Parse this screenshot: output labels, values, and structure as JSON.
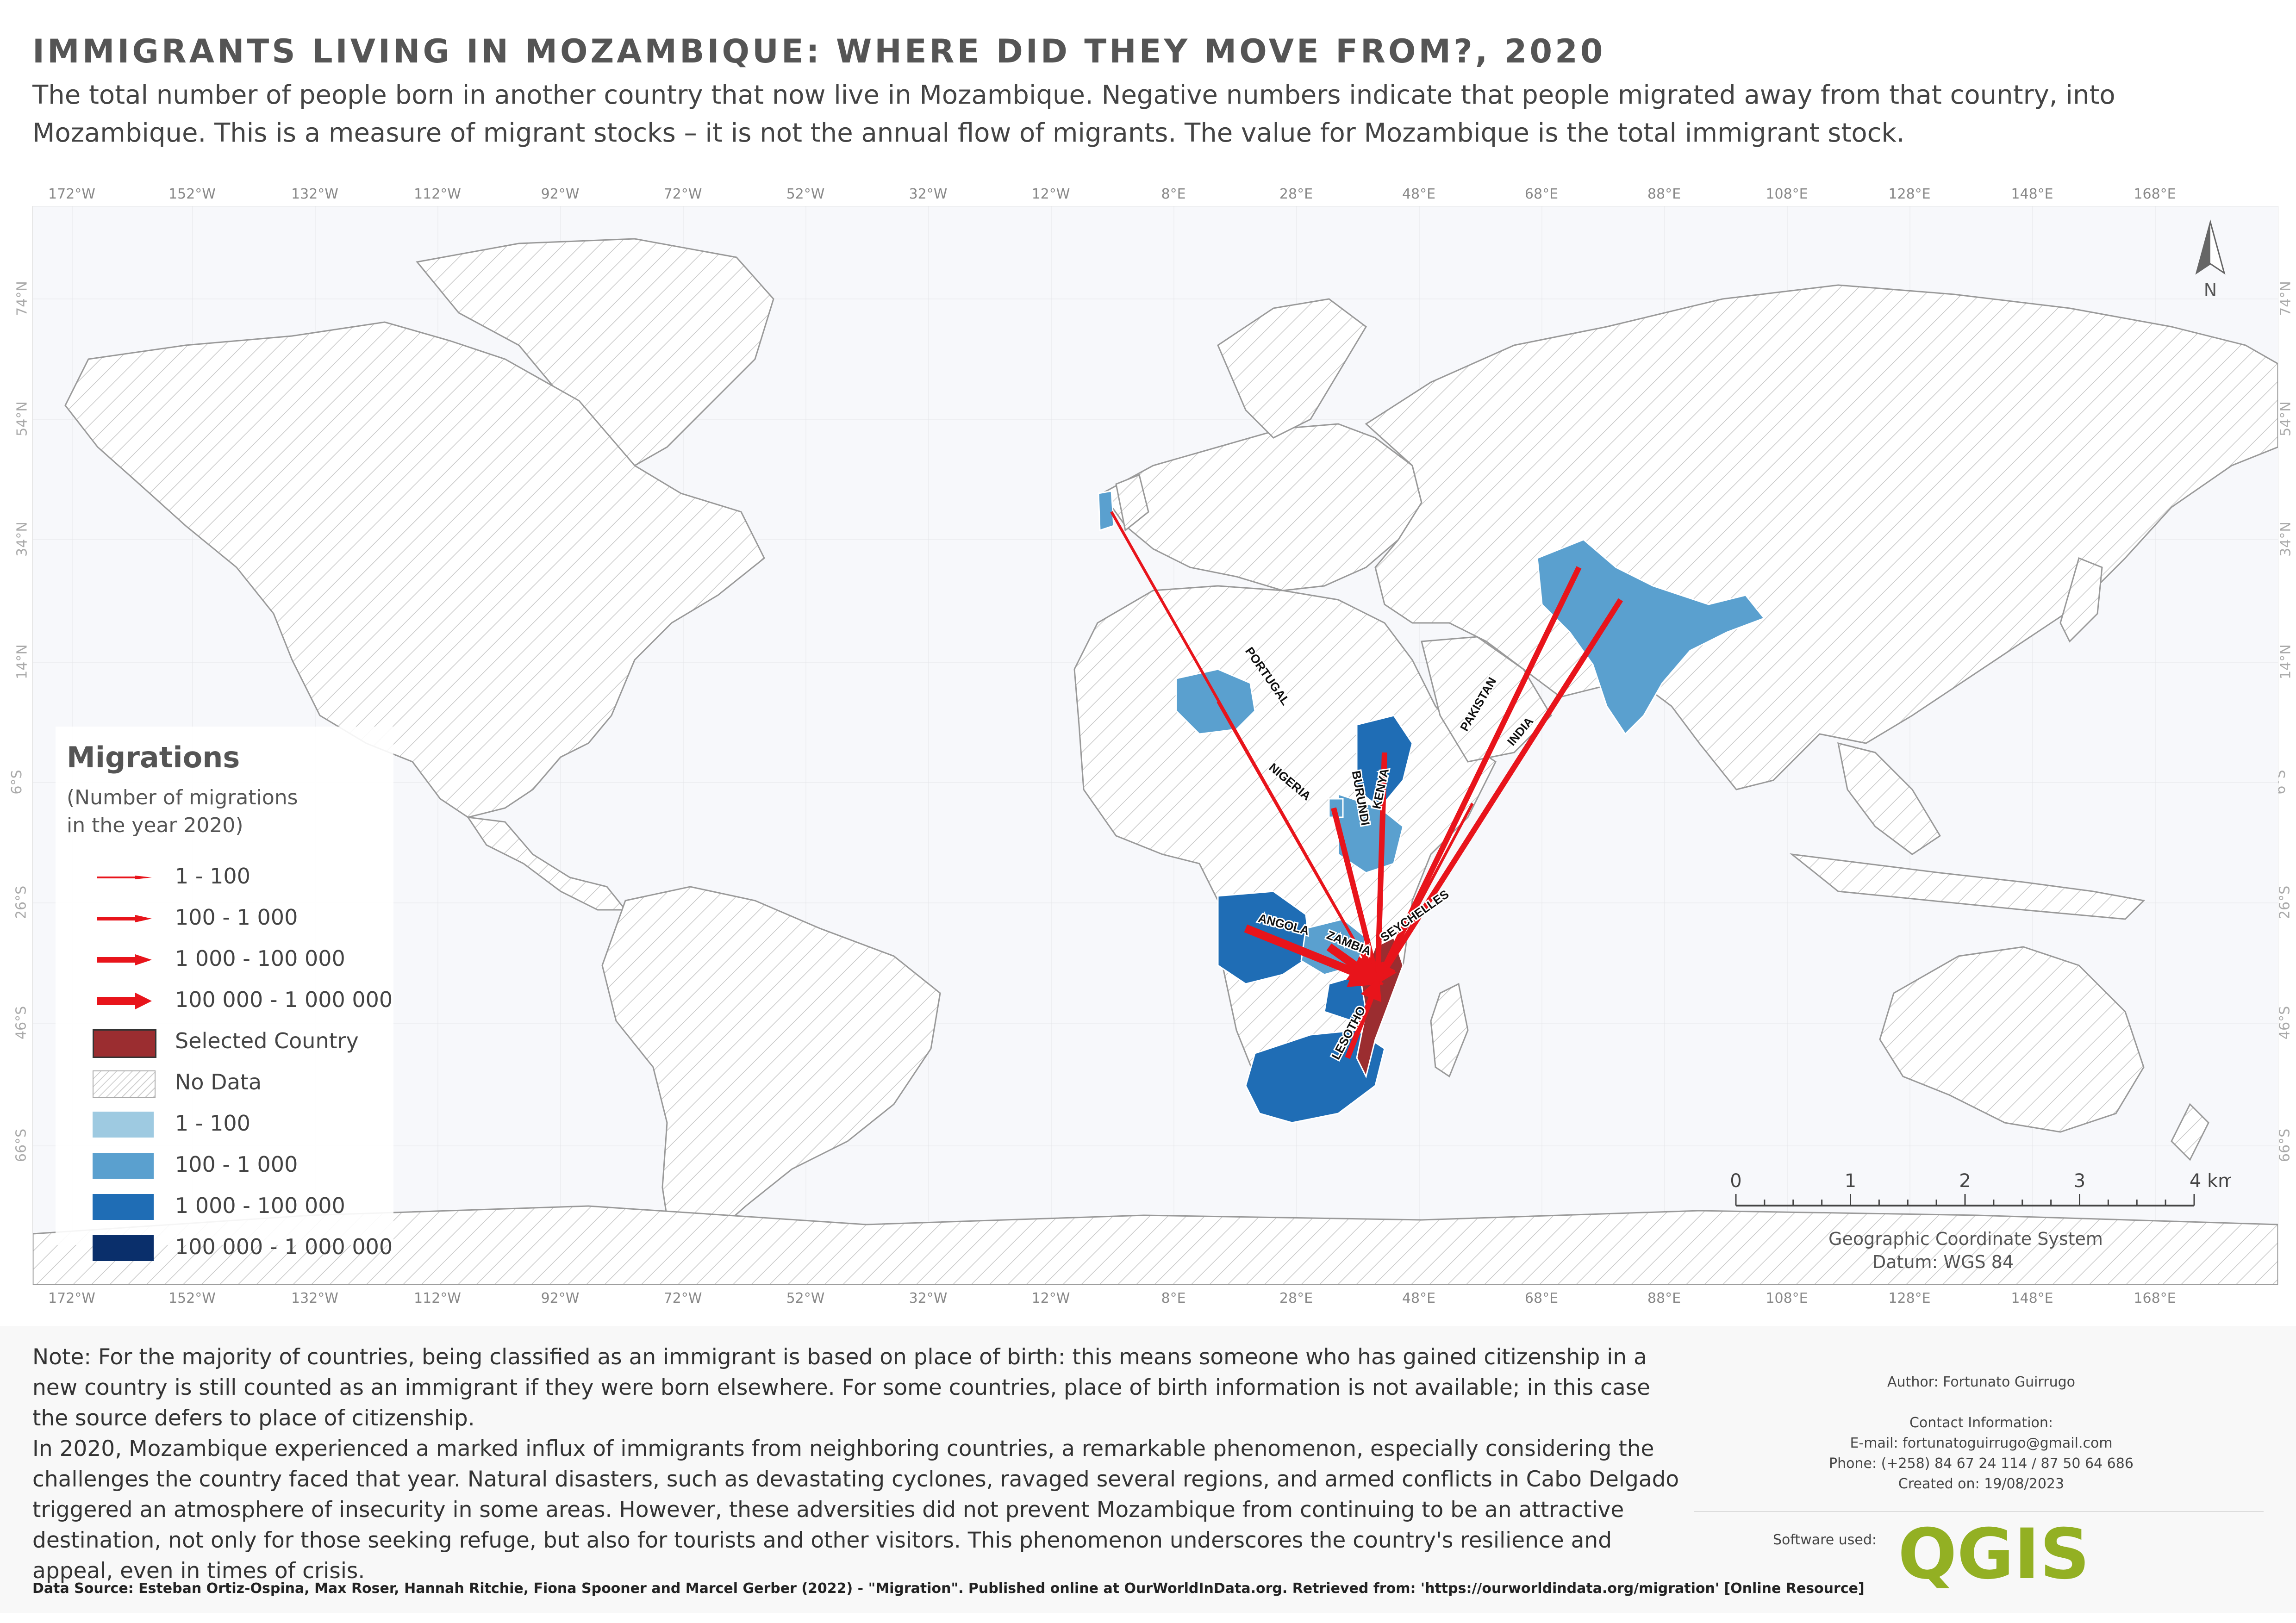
{
  "title": "IMMIGRANTS LIVING IN MOZAMBIQUE: WHERE DID THEY MOVE FROM?, 2020",
  "subtitle": "The total number of people born in another country that now live in Mozambique. Negative numbers indicate that people migrated away from that country, into Mozambique. This is a measure of migrant stocks – it is not the annual flow of migrants. The value for Mozambique is the total immigrant stock.",
  "graticule": {
    "longitudes": [
      "172°W",
      "152°W",
      "132°W",
      "112°W",
      "92°W",
      "72°W",
      "52°W",
      "32°W",
      "12°W",
      "8°E",
      "28°E",
      "48°E",
      "68°E",
      "88°E",
      "108°E",
      "128°E",
      "148°E",
      "168°E"
    ],
    "latitudes": [
      "74°N",
      "54°N",
      "34°N",
      "14°N",
      "6°S",
      "26°S",
      "46°S",
      "66°S"
    ]
  },
  "map": {
    "selected_country": "Mozambique",
    "flows": [
      {
        "label": "PORTUGAL",
        "class": "1 - 100"
      },
      {
        "label": "NIGERIA",
        "class": "1 - 100"
      },
      {
        "label": "BURUNDI",
        "class": "100 - 1 000"
      },
      {
        "label": "KENYA",
        "class": "100 - 1 000"
      },
      {
        "label": "PAKISTAN",
        "class": "100 - 1 000"
      },
      {
        "label": "INDIA",
        "class": "100 - 1 000"
      },
      {
        "label": "ANGOLA",
        "class": "1 000 - 100 000"
      },
      {
        "label": "ZAMBIA",
        "class": "1 000 - 100 000"
      },
      {
        "label": "SEYCHELLES",
        "class": "1 - 100"
      },
      {
        "label": "LESOTHO",
        "class": "100 - 1 000"
      }
    ],
    "north_label": "N"
  },
  "legend": {
    "title": "Migrations",
    "subtitle_line1": "(Number of migrations",
    "subtitle_line2": "in the year 2020)",
    "items": [
      {
        "label": "1 - 100",
        "type": "arrow"
      },
      {
        "label": "100 - 1 000",
        "type": "arrow"
      },
      {
        "label": "1 000 - 100 000",
        "type": "arrow"
      },
      {
        "label": "100 000 - 1 000 000",
        "type": "arrow"
      },
      {
        "label": "Selected Country",
        "type": "fill",
        "color": "#9b2d30"
      },
      {
        "label": "No Data",
        "type": "hatch"
      },
      {
        "label": "1 - 100",
        "type": "fill",
        "color": "#9ecae1"
      },
      {
        "label": "100 - 1 000",
        "type": "fill",
        "color": "#5aa0cf"
      },
      {
        "label": "1 000 - 100 000",
        "type": "fill",
        "color": "#1f6db5"
      },
      {
        "label": "100 000 - 1 000 000",
        "type": "fill",
        "color": "#0a2f6b"
      }
    ]
  },
  "scale": {
    "ticks": [
      "0",
      "1",
      "2",
      "3"
    ],
    "end_label": "4 km",
    "crs_line1": "Geographic Coordinate System",
    "crs_line2": "Datum: WGS 84"
  },
  "note": {
    "paragraph1": "Note: For the majority of countries, being classified as an immigrant is based on place of birth: this means someone who has gained citizenship in a new country is still counted as an immigrant if they were born elsewhere. For some countries, place of birth information is not available; in this case the source defers to place of citizenship.",
    "paragraph2": "In 2020, Mozambique experienced a marked influx of immigrants from neighboring countries, a remarkable phenomenon, especially considering the challenges the country faced that year. Natural disasters, such as devastating cyclones, ravaged several regions, and armed conflicts in Cabo Delgado triggered an atmosphere of insecurity in some areas. However, these adversities did not prevent Mozambique from continuing to be an attractive destination, not only for those seeking refuge, but also for tourists and other visitors. This phenomenon underscores the country's resilience and appeal, even in times of crisis."
  },
  "source": "Data Source: Esteban Ortiz-Ospina, Max Roser, Hannah Ritchie, Fiona Spooner and Marcel Gerber (2022) - \"Migration\". Published online at OurWorldInData.org. Retrieved from: 'https://ourworldindata.org/migration' [Online Resource]",
  "credits": {
    "author": "Author: Fortunato Guirrugo",
    "contact_heading": "Contact Information:",
    "email": "E-mail: fortunatoguirrugo@gmail.com",
    "phone": "Phone: (+258) 84 67 24 114 / 87 50 64 686",
    "created": "Created on: 19/08/2023",
    "software_label": "Software used:",
    "software_logo_text": "QGIS"
  },
  "colors": {
    "selected": "#9b2d30",
    "class_1_100": "#9ecae1",
    "class_100_1000": "#5aa0cf",
    "class_1000_100000": "#1f6db5",
    "class_100000_1000000": "#0a2f6b",
    "arrow": "#e8141b",
    "qgis_green": "#93b023"
  }
}
